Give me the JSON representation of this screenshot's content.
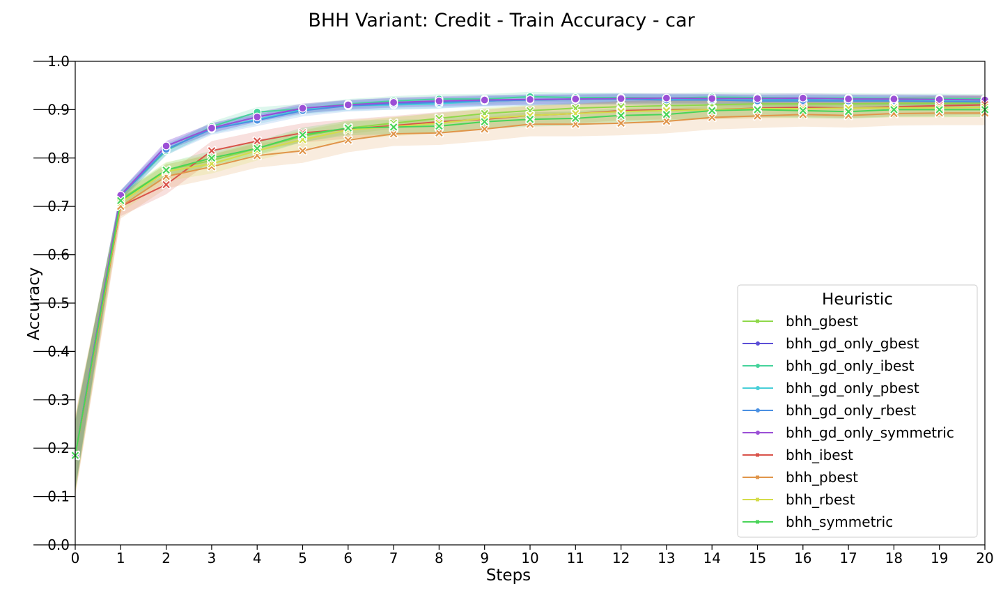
{
  "chart_data": {
    "type": "line",
    "title": "BHH Variant: Credit - Train Accuracy - car",
    "xlabel": "Steps",
    "ylabel": "Accuracy",
    "xlim": [
      0,
      20
    ],
    "ylim": [
      0.0,
      1.0
    ],
    "x": [
      0,
      1,
      2,
      3,
      4,
      5,
      6,
      7,
      8,
      9,
      10,
      11,
      12,
      13,
      14,
      15,
      16,
      17,
      18,
      19,
      20
    ],
    "x_ticks": [
      "0",
      "1",
      "2",
      "3",
      "4",
      "5",
      "6",
      "7",
      "8",
      "9",
      "10",
      "11",
      "12",
      "13",
      "14",
      "15",
      "16",
      "17",
      "18",
      "19",
      "20"
    ],
    "y_ticks": [
      "0.0",
      "0.1",
      "0.2",
      "0.3",
      "0.4",
      "0.5",
      "0.6",
      "0.7",
      "0.8",
      "0.9",
      "1.0"
    ],
    "grid": false,
    "legend": {
      "title": "Heuristic",
      "placement": "lower-right"
    },
    "series": [
      {
        "name": "bhh_gbest",
        "color": "#8fd84a",
        "marker": "x",
        "band": 0.012,
        "values": [
          0.185,
          0.715,
          0.775,
          0.795,
          0.82,
          0.845,
          0.862,
          0.872,
          0.882,
          0.892,
          0.898,
          0.903,
          0.906,
          0.908,
          0.91,
          0.912,
          0.912,
          0.912,
          0.913,
          0.913,
          0.914
        ]
      },
      {
        "name": "bhh_gd_only_gbest",
        "color": "#5b4ed6",
        "marker": "o",
        "band": 0.01,
        "values": [
          0.185,
          0.723,
          0.825,
          0.862,
          0.885,
          0.902,
          0.91,
          0.914,
          0.916,
          0.918,
          0.92,
          0.921,
          0.922,
          0.922,
          0.922,
          0.921,
          0.922,
          0.921,
          0.92,
          0.92,
          0.919
        ]
      },
      {
        "name": "bhh_gd_only_ibest",
        "color": "#45d39b",
        "marker": "o",
        "band": 0.01,
        "values": [
          0.185,
          0.722,
          0.815,
          0.865,
          0.895,
          0.902,
          0.912,
          0.918,
          0.922,
          0.922,
          0.927,
          0.925,
          0.925,
          0.924,
          0.926,
          0.925,
          0.924,
          0.924,
          0.923,
          0.923,
          0.922
        ]
      },
      {
        "name": "bhh_gd_only_pbest",
        "color": "#48cfd8",
        "marker": "o",
        "band": 0.01,
        "values": [
          0.185,
          0.722,
          0.818,
          0.86,
          0.88,
          0.9,
          0.908,
          0.91,
          0.912,
          0.918,
          0.92,
          0.921,
          0.922,
          0.921,
          0.921,
          0.92,
          0.92,
          0.92,
          0.919,
          0.919,
          0.918
        ]
      },
      {
        "name": "bhh_gd_only_rbest",
        "color": "#4a90e2",
        "marker": "o",
        "band": 0.012,
        "values": [
          0.185,
          0.722,
          0.818,
          0.86,
          0.878,
          0.898,
          0.908,
          0.912,
          0.915,
          0.918,
          0.92,
          0.922,
          0.922,
          0.92,
          0.92,
          0.918,
          0.918,
          0.918,
          0.918,
          0.917,
          0.916
        ]
      },
      {
        "name": "bhh_gd_only_symmetric",
        "color": "#9b4fd6",
        "marker": "o",
        "band": 0.01,
        "values": [
          0.185,
          0.723,
          0.825,
          0.862,
          0.885,
          0.903,
          0.91,
          0.915,
          0.918,
          0.92,
          0.921,
          0.922,
          0.923,
          0.924,
          0.923,
          0.923,
          0.924,
          0.922,
          0.922,
          0.921,
          0.92
        ]
      },
      {
        "name": "bhh_ibest",
        "color": "#d9534a",
        "marker": "x",
        "band": 0.02,
        "values": [
          0.185,
          0.7,
          0.745,
          0.815,
          0.835,
          0.852,
          0.86,
          0.867,
          0.875,
          0.88,
          0.888,
          0.892,
          0.898,
          0.9,
          0.9,
          0.903,
          0.905,
          0.903,
          0.906,
          0.908,
          0.91
        ]
      },
      {
        "name": "bhh_pbest",
        "color": "#e0954a",
        "marker": "x",
        "band": 0.025,
        "values": [
          0.185,
          0.7,
          0.762,
          0.782,
          0.805,
          0.815,
          0.837,
          0.85,
          0.852,
          0.86,
          0.87,
          0.87,
          0.872,
          0.876,
          0.884,
          0.887,
          0.89,
          0.888,
          0.892,
          0.893,
          0.893
        ]
      },
      {
        "name": "bhh_rbest",
        "color": "#d4dc4a",
        "marker": "x",
        "band": 0.02,
        "values": [
          0.185,
          0.708,
          0.772,
          0.788,
          0.815,
          0.838,
          0.858,
          0.865,
          0.872,
          0.882,
          0.888,
          0.892,
          0.896,
          0.898,
          0.9,
          0.902,
          0.902,
          0.903,
          0.904,
          0.904,
          0.905
        ]
      },
      {
        "name": "bhh_symmetric",
        "color": "#48d458",
        "marker": "x",
        "band": 0.015,
        "values": [
          0.185,
          0.712,
          0.775,
          0.8,
          0.82,
          0.848,
          0.862,
          0.864,
          0.866,
          0.875,
          0.88,
          0.882,
          0.888,
          0.89,
          0.898,
          0.9,
          0.898,
          0.896,
          0.9,
          0.9,
          0.9
        ]
      }
    ]
  }
}
